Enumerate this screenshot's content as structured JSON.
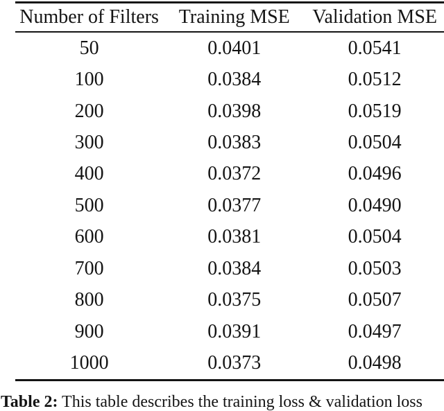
{
  "table": {
    "headers": [
      "Number of Filters",
      "Training MSE",
      "Validation MSE"
    ],
    "rows": [
      [
        "50",
        "0.0401",
        "0.0541"
      ],
      [
        "100",
        "0.0384",
        "0.0512"
      ],
      [
        "200",
        "0.0398",
        "0.0519"
      ],
      [
        "300",
        "0.0383",
        "0.0504"
      ],
      [
        "400",
        "0.0372",
        "0.0496"
      ],
      [
        "500",
        "0.0377",
        "0.0490"
      ],
      [
        "600",
        "0.0381",
        "0.0504"
      ],
      [
        "700",
        "0.0384",
        "0.0503"
      ],
      [
        "800",
        "0.0375",
        "0.0507"
      ],
      [
        "900",
        "0.0391",
        "0.0497"
      ],
      [
        "1000",
        "0.0373",
        "0.0498"
      ]
    ]
  },
  "caption": {
    "label": "Table 2:",
    "text": "This table describes the training loss & validation loss"
  },
  "colors": {
    "text": "#141414",
    "rule": "#141414",
    "background": "#ffffff"
  },
  "chart_data": {
    "type": "table",
    "title": "Table 2",
    "columns": [
      "Number of Filters",
      "Training MSE",
      "Validation MSE"
    ],
    "rows": [
      [
        50,
        0.0401,
        0.0541
      ],
      [
        100,
        0.0384,
        0.0512
      ],
      [
        200,
        0.0398,
        0.0519
      ],
      [
        300,
        0.0383,
        0.0504
      ],
      [
        400,
        0.0372,
        0.0496
      ],
      [
        500,
        0.0377,
        0.049
      ],
      [
        600,
        0.0381,
        0.0504
      ],
      [
        700,
        0.0384,
        0.0503
      ],
      [
        800,
        0.0375,
        0.0507
      ],
      [
        900,
        0.0391,
        0.0497
      ],
      [
        1000,
        0.0373,
        0.0498
      ]
    ]
  }
}
